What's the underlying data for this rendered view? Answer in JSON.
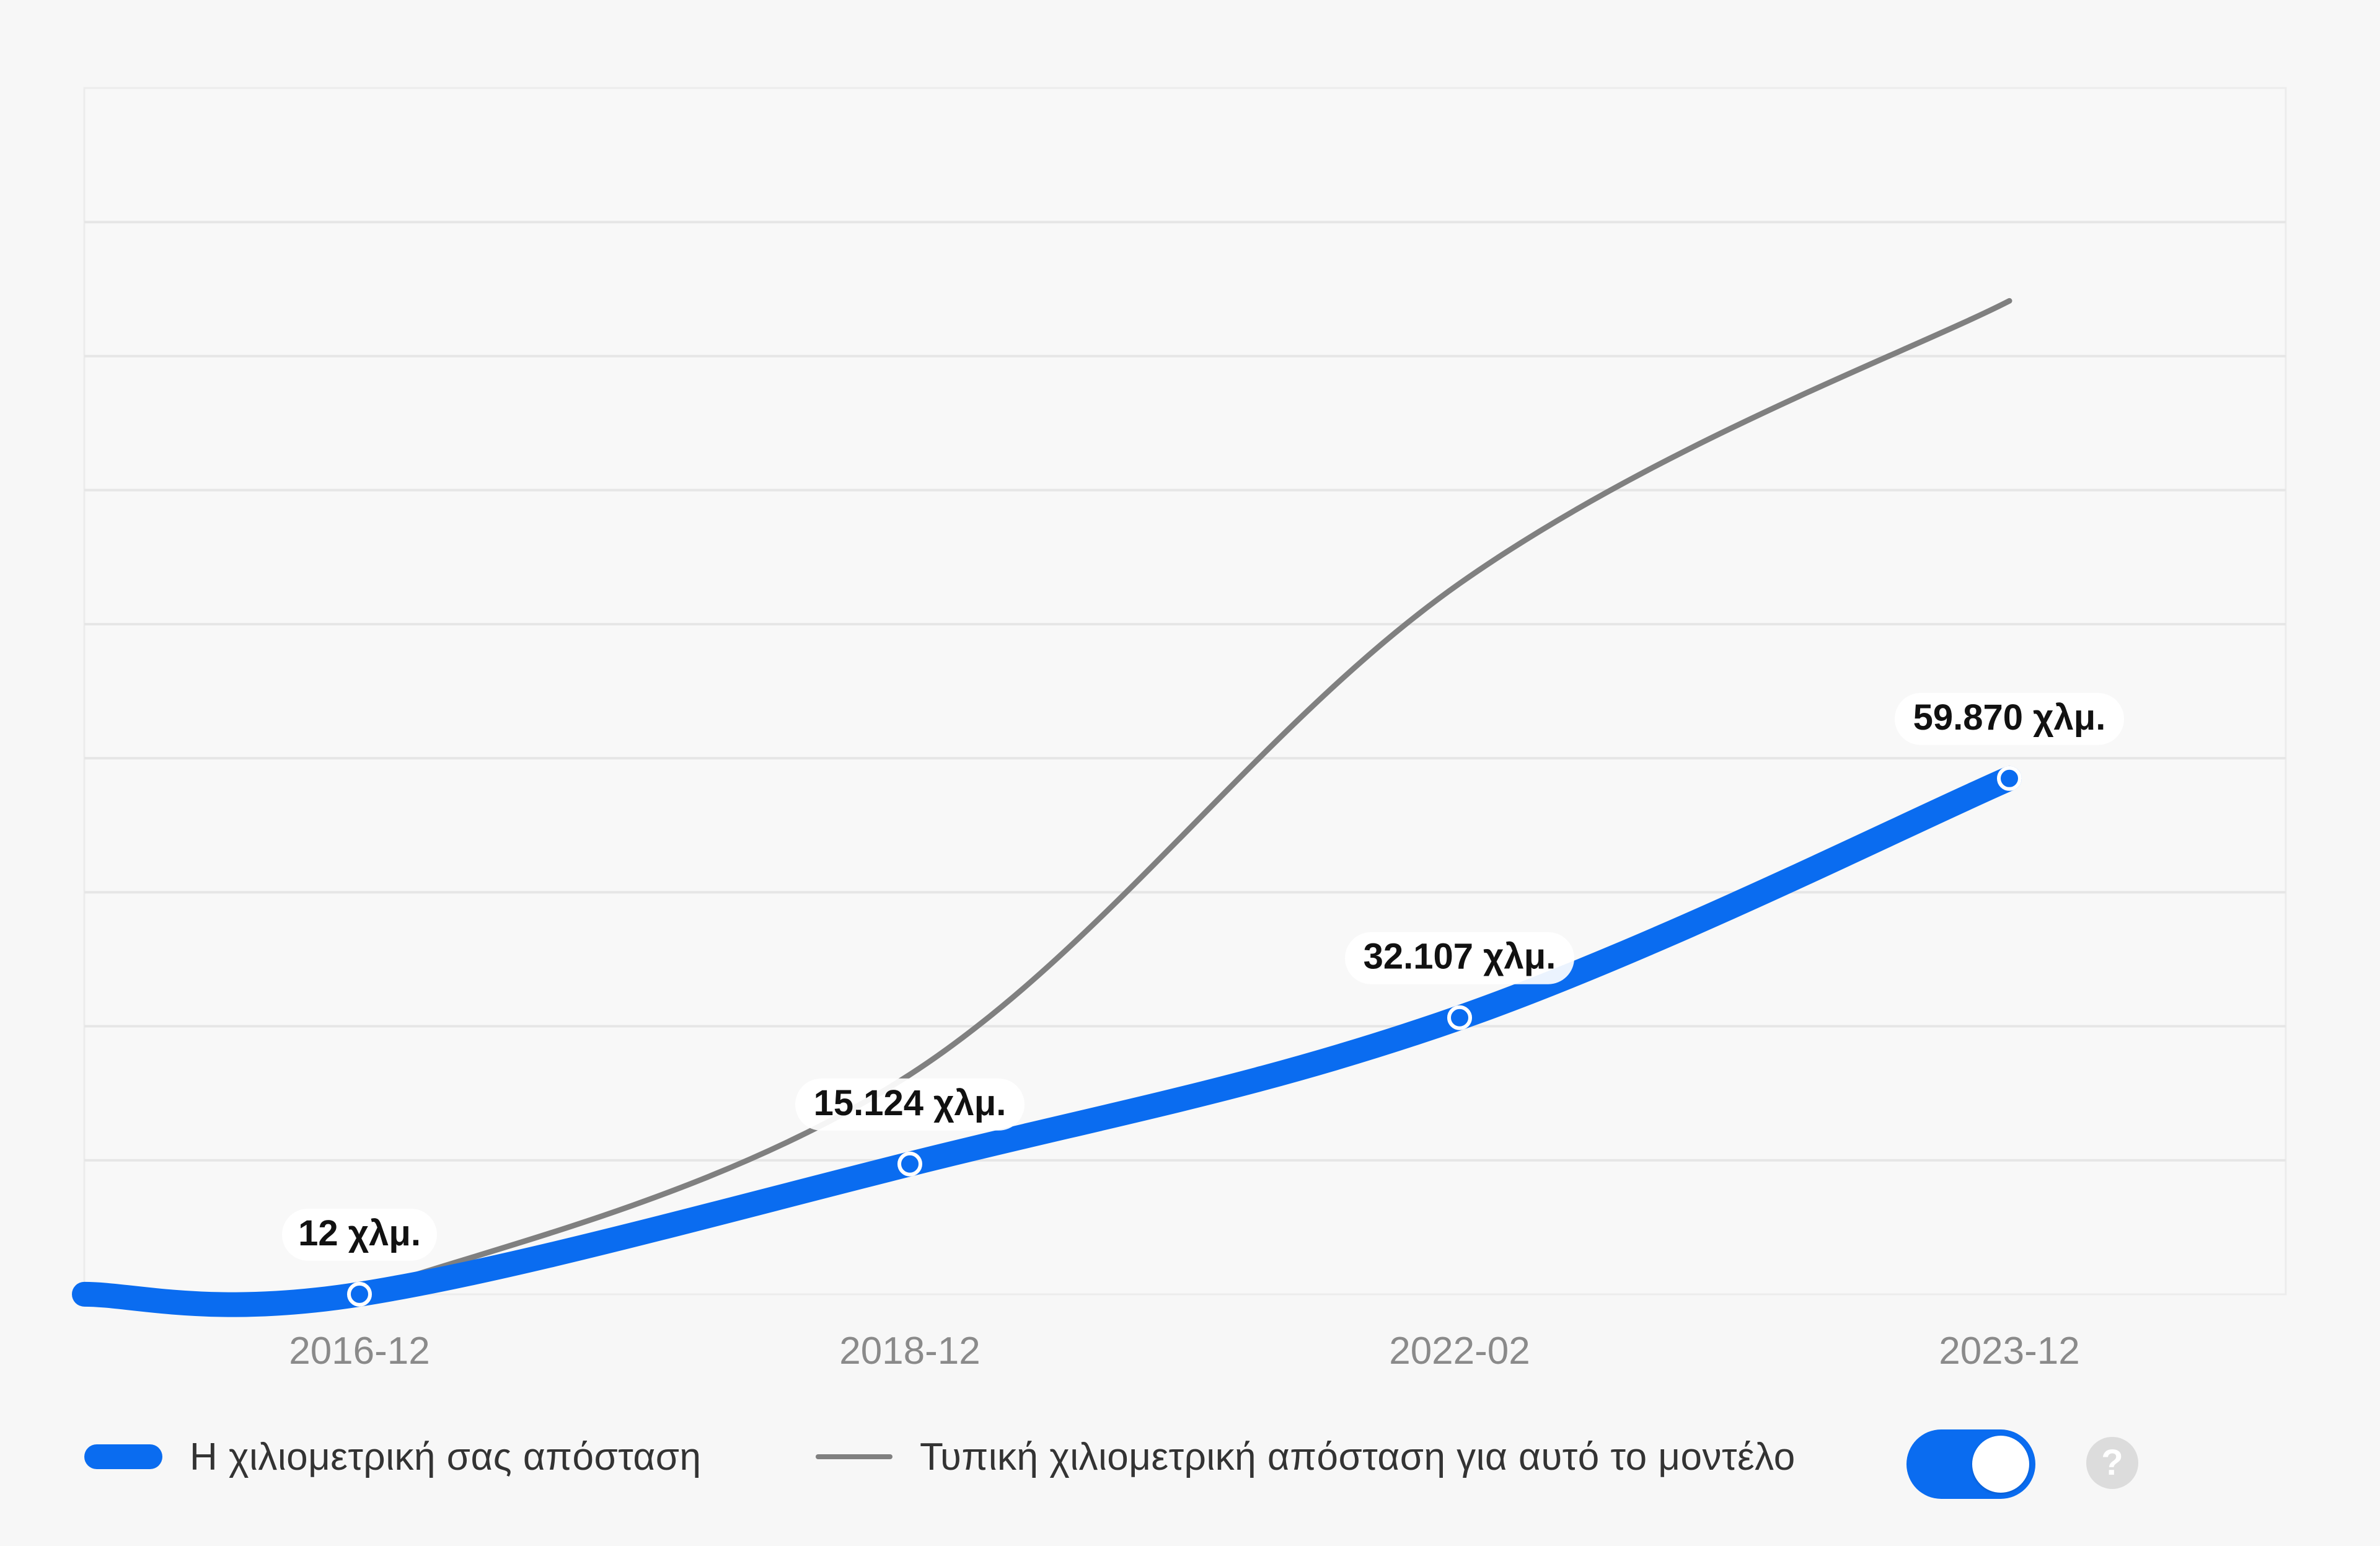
{
  "chart_data": {
    "type": "line",
    "title": "",
    "xlabel": "",
    "ylabel": "",
    "categories": [
      "2016-12",
      "2018-12",
      "2022-02",
      "2023-12"
    ],
    "grid": true,
    "legend_position": "bottom-left",
    "series": [
      {
        "name": "Η χιλιομετρική σας απόσταση",
        "color": "#0a6cf0",
        "values": [
          12,
          15124,
          32107,
          59870
        ],
        "labels": [
          "12 χλμ.",
          "15.124 χλμ.",
          "32.107 χλμ.",
          "59.870 χλμ."
        ]
      },
      {
        "name": "Τυπική χιλιομετρική απόσταση για αυτό το μοντέλο",
        "color": "#808080",
        "values": [
          12,
          25500,
          82500,
          115300
        ]
      }
    ]
  },
  "legend": {
    "your_mileage_label": "Η χιλιομετρική σας απόσταση",
    "typical_mileage_label": "Τυπική χιλιομετρική απόσταση για αυτό το μοντέλο",
    "toggle_on": true,
    "help_glyph": "?"
  },
  "colors": {
    "accent": "#0a6cf0",
    "typical_line": "#808080",
    "background": "#f7f7f7",
    "grid": "#e6e6e6"
  }
}
